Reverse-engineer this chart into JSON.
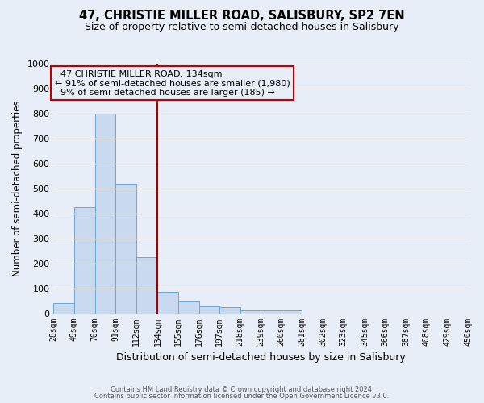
{
  "title": "47, CHRISTIE MILLER ROAD, SALISBURY, SP2 7EN",
  "subtitle": "Size of property relative to semi-detached houses in Salisbury",
  "xlabel": "Distribution of semi-detached houses by size in Salisbury",
  "ylabel": "Number of semi-detached properties",
  "footer_line1": "Contains HM Land Registry data © Crown copyright and database right 2024.",
  "footer_line2": "Contains public sector information licensed under the Open Government Licence v3.0.",
  "bar_edges": [
    28,
    49,
    70,
    91,
    112,
    134,
    155,
    176,
    197,
    218,
    239,
    260,
    281,
    302,
    323,
    345,
    366,
    387,
    408,
    429,
    450
  ],
  "bar_heights": [
    40,
    425,
    800,
    520,
    225,
    85,
    48,
    27,
    25,
    12,
    10,
    10,
    0,
    0,
    0,
    0,
    0,
    0,
    0,
    0
  ],
  "bar_color": "#c9daf0",
  "bar_edge_color": "#6fa8d4",
  "property_value": 134,
  "pct_smaller": 91,
  "n_smaller": 1980,
  "pct_larger": 9,
  "n_larger": 185,
  "vline_color": "#a00000",
  "box_edge_color": "#c00000",
  "ylim": [
    0,
    1000
  ],
  "yticks": [
    0,
    100,
    200,
    300,
    400,
    500,
    600,
    700,
    800,
    900,
    1000
  ],
  "bg_color": "#e8eef7",
  "grid_color": "#ffffff",
  "title_fontsize": 10.5,
  "subtitle_fontsize": 9
}
